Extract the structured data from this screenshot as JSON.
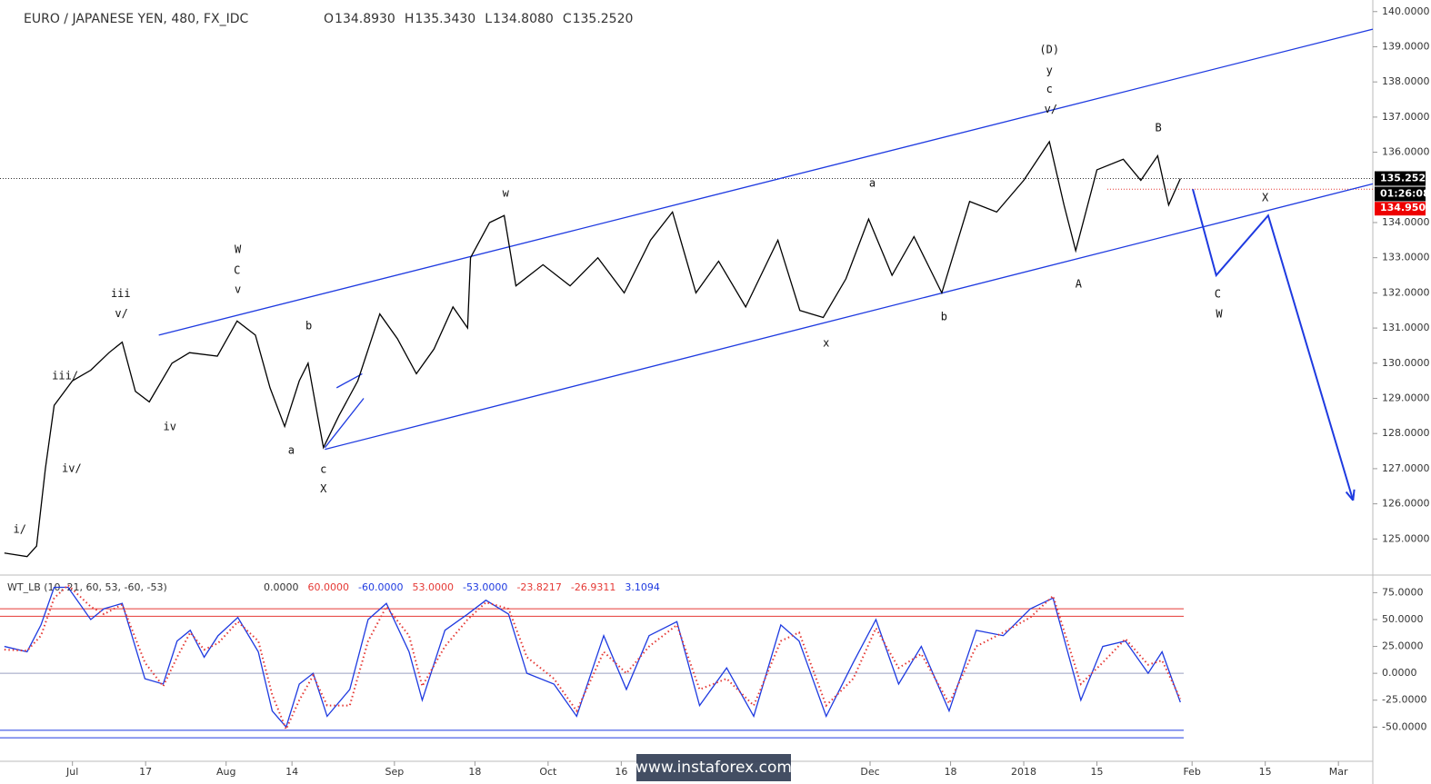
{
  "chart_data": [
    {
      "type": "line",
      "title": "EURO / JAPANESE YEN, 480, FX_IDC",
      "ohlc": {
        "open_label": "O",
        "open": "134.8930",
        "high_label": "H",
        "high": "135.3430",
        "low_label": "L",
        "low": "134.8080",
        "close_label": "C",
        "close": "135.2520"
      },
      "x": [
        -9.3,
        -6.2,
        -4.9,
        -3.7,
        -2.5,
        0,
        2.5,
        5,
        6.8,
        8.6,
        10.5,
        13.6,
        16,
        19.8,
        22.5,
        25,
        27,
        29,
        31,
        32.2,
        33.5,
        34.3,
        36.4,
        39,
        42,
        44.4,
        47,
        49.4,
        52,
        54,
        54.4,
        57,
        59,
        60.6,
        64.3,
        68,
        71.8,
        75.4,
        79,
        82,
        85.2,
        88.3,
        92,
        96.4,
        99.4,
        102.6,
        105.7,
        108.8,
        112,
        115,
        118.8,
        122.6,
        126.3,
        130,
        133.5,
        135.5,
        137.1,
        140,
        143.6,
        146,
        148.3,
        149.8,
        151.4
      ],
      "series": [
        {
          "name": "price",
          "color": "#000000",
          "values": [
            124.6,
            124.5,
            124.8,
            127,
            128.8,
            129.5,
            129.8,
            130.3,
            130.6,
            129.2,
            128.9,
            130,
            130.3,
            130.2,
            131.2,
            130.8,
            129.3,
            128.2,
            129.5,
            130,
            128.5,
            127.6,
            128.5,
            129.5,
            131.4,
            130.7,
            129.7,
            130.4,
            131.6,
            131,
            133,
            134,
            134.2,
            132.2,
            132.8,
            132.2,
            133,
            132,
            133.5,
            134.3,
            132,
            132.9,
            131.6,
            133.5,
            131.5,
            131.3,
            132.4,
            134.1,
            132.5,
            133.6,
            132,
            134.6,
            134.3,
            135.2,
            136.3,
            134.5,
            133.2,
            135.5,
            135.8,
            135.2,
            135.9,
            134.5,
            135.25
          ]
        }
      ],
      "xlim": [
        -9.9,
        177.7
      ],
      "ylim": [
        124,
        140.33
      ],
      "xticks": [
        {
          "value": 0,
          "label": "Jul"
        },
        {
          "value": 10,
          "label": "17"
        },
        {
          "value": 21,
          "label": "Aug"
        },
        {
          "value": 30,
          "label": "14"
        },
        {
          "value": 44,
          "label": "Sep"
        },
        {
          "value": 55,
          "label": "18"
        },
        {
          "value": 65,
          "label": "Oct"
        },
        {
          "value": 75,
          "label": "16"
        },
        {
          "value": 109,
          "label": "Dec"
        },
        {
          "value": 120,
          "label": "18"
        },
        {
          "value": 130,
          "label": "2018"
        },
        {
          "value": 140,
          "label": "15"
        },
        {
          "value": 153,
          "label": "Feb"
        },
        {
          "value": 163,
          "label": "15"
        },
        {
          "value": 173,
          "label": "Mar"
        }
      ],
      "yticks": [
        {
          "value": 125,
          "label": "125.0000"
        },
        {
          "value": 126,
          "label": "126.0000"
        },
        {
          "value": 127,
          "label": "127.0000"
        },
        {
          "value": 128,
          "label": "128.0000"
        },
        {
          "value": 129,
          "label": "129.0000"
        },
        {
          "value": 130,
          "label": "130.0000"
        },
        {
          "value": 131,
          "label": "131.0000"
        },
        {
          "value": 132,
          "label": "132.0000"
        },
        {
          "value": 133,
          "label": "133.0000"
        },
        {
          "value": 134,
          "label": "134.0000"
        },
        {
          "value": 136,
          "label": "136.0000"
        },
        {
          "value": 137,
          "label": "137.0000"
        },
        {
          "value": 138,
          "label": "138.0000"
        },
        {
          "value": 139,
          "label": "139.0000"
        },
        {
          "value": 140,
          "label": "140.0000"
        }
      ],
      "last_price": {
        "value": 135.252,
        "label": "135.2520"
      },
      "countdown": "01:26:08",
      "stop_level": {
        "value": 134.95,
        "label": "134.9500"
      },
      "trendlines": [
        {
          "x": [
            11.8,
            177.7
          ],
          "y": [
            130.8,
            139.5
          ]
        },
        {
          "x": [
            34.5,
            177.7
          ],
          "y": [
            127.55,
            135.1
          ]
        },
        {
          "x": [
            34.5,
            39.8
          ],
          "y": [
            127.6,
            129.0
          ]
        },
        {
          "x": [
            36.1,
            39.6
          ],
          "y": [
            129.3,
            129.7
          ]
        },
        {
          "x": [
            153.1,
            156.3,
            163.4,
            175
          ],
          "y": [
            134.95,
            132.5,
            134.2,
            126.1
          ]
        }
      ],
      "annotations": [
        {
          "text": "i/",
          "x": -7.2,
          "y": 125.26
        },
        {
          "text": "iv/",
          "x": -0.1,
          "y": 127.0
        },
        {
          "text": "iii/",
          "x": -1,
          "y": 129.63
        },
        {
          "text": "v/",
          "x": 6.7,
          "y": 131.4
        },
        {
          "text": "iii",
          "x": 6.6,
          "y": 131.97
        },
        {
          "text": "iv",
          "x": 13.3,
          "y": 128.18
        },
        {
          "text": "W",
          "x": 22.6,
          "y": 133.22
        },
        {
          "text": "C",
          "x": 22.5,
          "y": 132.63
        },
        {
          "text": "v",
          "x": 22.6,
          "y": 132.09
        },
        {
          "text": "b",
          "x": 32.3,
          "y": 131.05
        },
        {
          "text": "a",
          "x": 29.9,
          "y": 127.51
        },
        {
          "text": "c",
          "x": 34.3,
          "y": 126.97
        },
        {
          "text": "X",
          "x": 34.3,
          "y": 126.42
        },
        {
          "text": "w",
          "x": 59.2,
          "y": 134.83
        },
        {
          "text": "x",
          "x": 103,
          "y": 130.56
        },
        {
          "text": "a",
          "x": 109.3,
          "y": 135.11
        },
        {
          "text": "b",
          "x": 119.1,
          "y": 131.31
        },
        {
          "text": "(D)",
          "x": 133.5,
          "y": 138.91
        },
        {
          "text": "y",
          "x": 133.5,
          "y": 138.32
        },
        {
          "text": "c",
          "x": 133.5,
          "y": 137.78
        },
        {
          "text": "v/",
          "x": 133.7,
          "y": 137.21
        },
        {
          "text": "A",
          "x": 137.5,
          "y": 132.24
        },
        {
          "text": "B",
          "x": 148.4,
          "y": 136.69
        },
        {
          "text": "X",
          "x": 163,
          "y": 134.7
        },
        {
          "text": "C",
          "x": 156.5,
          "y": 131.96
        },
        {
          "text": "W",
          "x": 156.7,
          "y": 131.39
        }
      ]
    },
    {
      "type": "line",
      "title": "WT_LB (10, 21, 60, 53, -60, -53)",
      "legend_values": [
        {
          "text": "0.0000",
          "color": "#333333"
        },
        {
          "text": "60.0000",
          "color": "#e53935"
        },
        {
          "text": "-60.0000",
          "color": "#1e3ae0"
        },
        {
          "text": "53.0000",
          "color": "#e53935"
        },
        {
          "text": "-53.0000",
          "color": "#1e3ae0"
        },
        {
          "text": "-23.8217",
          "color": "#e53935"
        },
        {
          "text": "-26.9311",
          "color": "#e53935"
        },
        {
          "text": "3.1094",
          "color": "#1e3ae0"
        }
      ],
      "x": [
        -9.3,
        -6.2,
        -4.3,
        -2.5,
        -0.6,
        2.5,
        4.3,
        6.8,
        9.9,
        12.4,
        14.3,
        16.1,
        18,
        19.9,
        22.6,
        25.4,
        27.3,
        29.2,
        31,
        32.9,
        34.8,
        37.9,
        40.4,
        42.9,
        46,
        47.8,
        50.9,
        54,
        56.5,
        59.6,
        62.1,
        65.8,
        68.9,
        72.6,
        75.7,
        78.8,
        82.6,
        85.7,
        89.4,
        93.1,
        96.8,
        99.3,
        103,
        106.7,
        109.8,
        112.9,
        116,
        119.8,
        123.5,
        127.2,
        130.9,
        134,
        137.8,
        140.8,
        143.9,
        147,
        148.9,
        151.4
      ],
      "series": [
        {
          "name": "wt1",
          "color": "#1e3ae0",
          "values": [
            25,
            20,
            45,
            80,
            80,
            50,
            60,
            65,
            -5,
            -10,
            30,
            40,
            15,
            35,
            52,
            20,
            -35,
            -50,
            -10,
            0,
            -40,
            -15,
            50,
            65,
            20,
            -25,
            40,
            55,
            68,
            55,
            0,
            -10,
            -40,
            35,
            -15,
            35,
            48,
            -30,
            5,
            -40,
            45,
            30,
            -40,
            10,
            50,
            -10,
            25,
            -35,
            40,
            35,
            60,
            70,
            -25,
            25,
            30,
            0,
            20,
            -26.93
          ]
        },
        {
          "name": "wt2",
          "color": "#e53935",
          "values": [
            22,
            21,
            35,
            70,
            82,
            62,
            55,
            64,
            10,
            -12,
            15,
            38,
            22,
            28,
            48,
            30,
            -20,
            -52,
            -25,
            -2,
            -30,
            -30,
            30,
            62,
            35,
            -12,
            25,
            50,
            66,
            60,
            15,
            -5,
            -35,
            20,
            0,
            25,
            45,
            -15,
            -5,
            -30,
            30,
            38,
            -30,
            -5,
            42,
            5,
            18,
            -28,
            25,
            38,
            52,
            72,
            -10,
            10,
            32,
            8,
            12,
            -23.82
          ]
        }
      ],
      "xlim": [
        -9.9,
        177.7
      ],
      "ylim": [
        -81,
        89.7
      ],
      "yticks": [
        {
          "value": -50,
          "label": "-50.0000"
        },
        {
          "value": -25,
          "label": "-25.0000"
        },
        {
          "value": 0,
          "label": "0.0000"
        },
        {
          "value": 25,
          "label": "25.0000"
        },
        {
          "value": 50,
          "label": "50.0000"
        },
        {
          "value": 75,
          "label": "75.0000"
        }
      ],
      "levels": [
        {
          "value": 60,
          "color": "#e53935"
        },
        {
          "value": 53,
          "color": "#e53935"
        },
        {
          "value": 0,
          "color": "#9aa0c0"
        },
        {
          "value": -53,
          "color": "#1e3ae0"
        },
        {
          "value": -60,
          "color": "#1e3ae0"
        }
      ]
    }
  ],
  "watermark": "www.instaforex.com"
}
